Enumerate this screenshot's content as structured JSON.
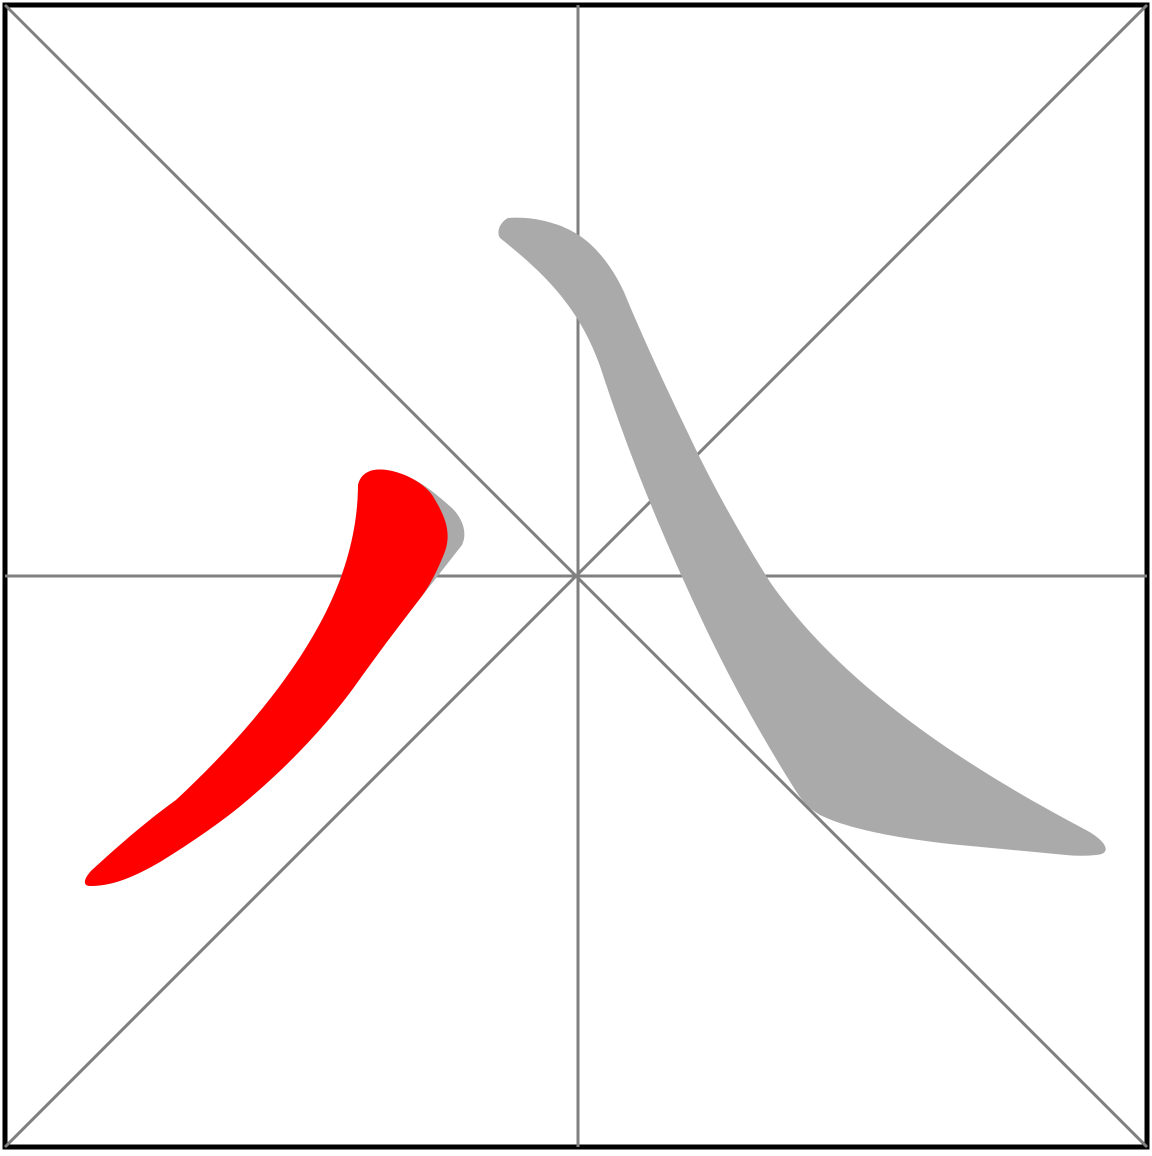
{
  "grid": {
    "style": "rice-grid",
    "guides": [
      "vertical-center",
      "horizontal-center",
      "diagonal-down",
      "diagonal-up"
    ],
    "border_color": "#000000",
    "guide_color": "#808080"
  },
  "character": {
    "stroke_count": 2,
    "highlighted_stroke_number": 1,
    "strokes": [
      {
        "order": 1,
        "type": "left-falling (pie)",
        "state": "highlighted",
        "color": "#ff0000"
      },
      {
        "order": 2,
        "type": "right-falling (na)",
        "state": "pending",
        "color": "#aaaaaa"
      }
    ]
  },
  "colors": {
    "background": "#ffffff",
    "highlight": "#ff0000",
    "outline": "#aaaaaa"
  }
}
